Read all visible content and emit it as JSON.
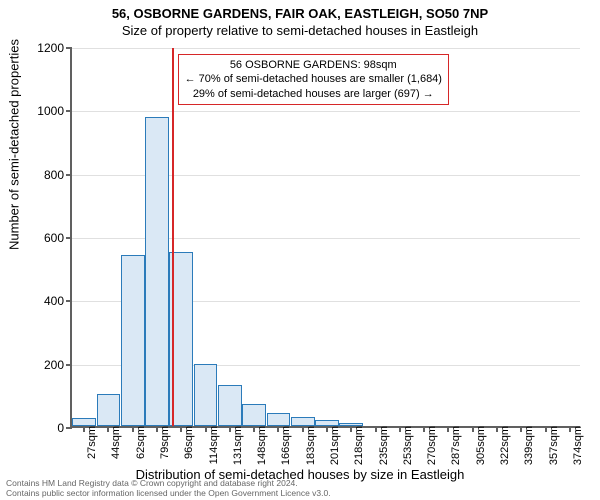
{
  "chart": {
    "type": "histogram",
    "title": "56, OSBORNE GARDENS, FAIR OAK, EASTLEIGH, SO50 7NP",
    "subtitle": "Size of property relative to semi-detached houses in Eastleigh",
    "ylabel": "Number of semi-detached properties",
    "xlabel": "Distribution of semi-detached houses by size in Eastleigh",
    "ylim": [
      0,
      1200
    ],
    "ytick_step": 200,
    "yticks": [
      0,
      200,
      400,
      600,
      800,
      1000,
      1200
    ],
    "xticks": [
      "27sqm",
      "44sqm",
      "62sqm",
      "79sqm",
      "96sqm",
      "114sqm",
      "131sqm",
      "148sqm",
      "166sqm",
      "183sqm",
      "201sqm",
      "218sqm",
      "235sqm",
      "253sqm",
      "270sqm",
      "287sqm",
      "305sqm",
      "322sqm",
      "339sqm",
      "357sqm",
      "374sqm"
    ],
    "bar_values": [
      25,
      100,
      540,
      975,
      550,
      195,
      130,
      70,
      40,
      30,
      20,
      10,
      0,
      0,
      0,
      0,
      0,
      0,
      0,
      0,
      0
    ],
    "bar_fill": "#dae8f5",
    "bar_stroke": "#2b7bba",
    "bar_stroke_width": 1,
    "grid_color": "#e0e0e0",
    "axis_color": "#606060",
    "background_color": "#ffffff",
    "reference_line": {
      "x_index_after": 4,
      "color": "#d62728",
      "width": 2
    },
    "annotation": {
      "lines": [
        "56 OSBORNE GARDENS: 98sqm",
        "← 70% of semi-detached houses are smaller (1,684)",
        "29% of semi-detached houses are larger (697) →"
      ],
      "border_color": "#d62728",
      "text_color": "#000000",
      "fontsize": 11
    },
    "title_fontsize": 13,
    "label_fontsize": 13,
    "tick_fontsize": 11
  },
  "footer": {
    "line1": "Contains HM Land Registry data © Crown copyright and database right 2024.",
    "line2": "Contains public sector information licensed under the Open Government Licence v3.0."
  }
}
